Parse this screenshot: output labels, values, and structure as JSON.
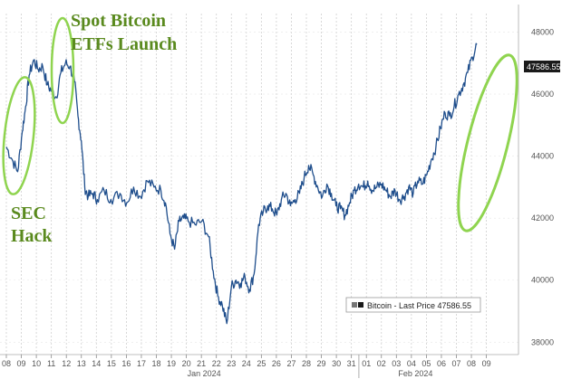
{
  "chart_data": {
    "type": "line",
    "series": [
      {
        "name": "Bitcoin",
        "color": "#1f4e8c",
        "points": [
          [
            0.0,
            44300
          ],
          [
            0.25,
            43900
          ],
          [
            0.5,
            43500
          ],
          [
            0.7,
            44800
          ],
          [
            0.85,
            45600
          ],
          [
            1.0,
            46600
          ],
          [
            1.2,
            47100
          ],
          [
            1.4,
            46800
          ],
          [
            1.6,
            46900
          ],
          [
            1.8,
            46300
          ],
          [
            2.0,
            46100
          ],
          [
            2.2,
            45900
          ],
          [
            2.4,
            46700
          ],
          [
            2.6,
            47000
          ],
          [
            2.8,
            46900
          ],
          [
            3.0,
            46400
          ],
          [
            3.15,
            45300
          ],
          [
            3.3,
            44500
          ],
          [
            3.45,
            43000
          ],
          [
            3.6,
            42700
          ],
          [
            3.8,
            42800
          ],
          [
            4.0,
            42600
          ],
          [
            4.3,
            42900
          ],
          [
            4.6,
            42600
          ],
          [
            5.0,
            42800
          ],
          [
            5.3,
            42500
          ],
          [
            5.6,
            43000
          ],
          [
            5.9,
            42700
          ],
          [
            6.2,
            43200
          ],
          [
            6.5,
            43000
          ],
          [
            6.8,
            42900
          ],
          [
            7.0,
            42500
          ],
          [
            7.2,
            41500
          ],
          [
            7.4,
            41000
          ],
          [
            7.6,
            41900
          ],
          [
            7.8,
            42000
          ],
          [
            8.0,
            41900
          ],
          [
            8.3,
            41800
          ],
          [
            8.6,
            41900
          ],
          [
            8.9,
            41400
          ],
          [
            9.1,
            40300
          ],
          [
            9.3,
            39500
          ],
          [
            9.5,
            39200
          ],
          [
            9.7,
            38600
          ],
          [
            9.9,
            39800
          ],
          [
            10.1,
            40000
          ],
          [
            10.3,
            39900
          ],
          [
            10.5,
            40100
          ],
          [
            10.7,
            39700
          ],
          [
            10.9,
            40200
          ],
          [
            11.1,
            41800
          ],
          [
            11.3,
            42200
          ],
          [
            11.5,
            42400
          ],
          [
            11.7,
            42300
          ],
          [
            11.9,
            42100
          ],
          [
            12.1,
            42600
          ],
          [
            12.3,
            42800
          ],
          [
            12.5,
            42400
          ],
          [
            12.7,
            42600
          ],
          [
            12.9,
            42800
          ],
          [
            13.1,
            43300
          ],
          [
            13.3,
            43700
          ],
          [
            13.5,
            43400
          ],
          [
            13.7,
            43000
          ],
          [
            13.9,
            42700
          ],
          [
            14.1,
            43100
          ],
          [
            14.3,
            42800
          ],
          [
            14.5,
            42400
          ],
          [
            14.7,
            42300
          ],
          [
            14.9,
            42100
          ],
          [
            15.1,
            42500
          ],
          [
            15.3,
            42900
          ],
          [
            15.5,
            43100
          ],
          [
            15.7,
            43000
          ],
          [
            15.9,
            43200
          ],
          [
            16.1,
            42900
          ],
          [
            16.3,
            43000
          ],
          [
            16.5,
            43100
          ],
          [
            16.7,
            42900
          ],
          [
            16.9,
            42700
          ],
          [
            17.1,
            42900
          ],
          [
            17.3,
            42600
          ],
          [
            17.5,
            42700
          ],
          [
            17.7,
            43000
          ],
          [
            17.9,
            42800
          ],
          [
            18.1,
            43200
          ],
          [
            18.3,
            43100
          ],
          [
            18.5,
            43400
          ],
          [
            18.7,
            43900
          ],
          [
            18.9,
            44300
          ],
          [
            19.1,
            44900
          ],
          [
            19.3,
            45400
          ],
          [
            19.5,
            45300
          ],
          [
            19.7,
            45600
          ],
          [
            19.9,
            46000
          ],
          [
            20.1,
            46300
          ],
          [
            20.3,
            46700
          ],
          [
            20.5,
            47200
          ],
          [
            20.7,
            47600
          ]
        ]
      }
    ],
    "x_tick_labels": [
      "08",
      "09",
      "10",
      "11",
      "12",
      "13",
      "14",
      "15",
      "16",
      "17",
      "18",
      "19",
      "20",
      "21",
      "22",
      "23",
      "24",
      "25",
      "26",
      "27",
      "28",
      "29",
      "30",
      "31",
      "01",
      "02",
      "03",
      "04",
      "05",
      "06",
      "07",
      "08",
      "09"
    ],
    "month_labels": [
      {
        "label": "Jan 2024",
        "at": 8.7
      },
      {
        "label": "Feb 2024",
        "at": 18.0
      }
    ],
    "y_ticks": [
      38000,
      40000,
      42000,
      44000,
      46000,
      48000
    ],
    "y_tick_labels": [
      "38000",
      "40000",
      "42000",
      "44000",
      "46000",
      "48000"
    ],
    "ylim": [
      37600,
      48600
    ],
    "x_step": 0.66,
    "grid": "vertical dashed",
    "legend": {
      "position": "bottom-right",
      "entry": "Bitcoin - Last Price 47586.55"
    },
    "last_price_label": "47586.55",
    "annotations": [
      {
        "text_lines": [
          "Spot Bitcoin",
          "ETFs Launch"
        ],
        "color": "#5a8a1e"
      },
      {
        "text_lines": [
          "SEC",
          "Hack"
        ],
        "color": "#5a8a1e"
      }
    ],
    "highlight_color": "#8fd44f"
  }
}
